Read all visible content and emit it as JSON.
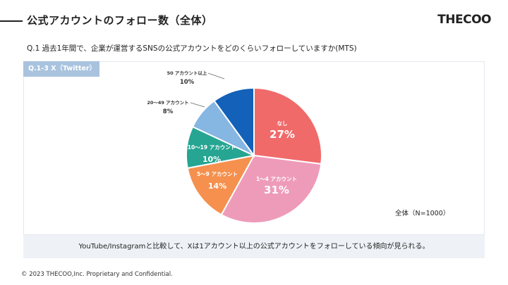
{
  "header": {
    "title": "公式アカウントのフォロー数（全体）",
    "logo": "THECOO"
  },
  "question": "Q.1 過去1年間で、企業が運営するSNSの公式アカウントをどのくらいフォローしていますか(MTS)",
  "tag": "Q.1-3 X（Twitter）",
  "total_label": "全体（N=1000）",
  "conclusion": "YouTube/Instagramと比較して、Xは1アカウント以上の公式アカウントをフォローしている傾向が見られる。",
  "footer": "© 2023 THECOO,Inc. Proprietary and Confidential.",
  "colors": {
    "none": "#f06a6a",
    "1to4": "#ee9bb9",
    "5to9": "#f5904e",
    "10to19": "#25a592",
    "20to49": "#86b6e2",
    "50plus": "#1361b8",
    "tag_bg": "#a9c3de"
  },
  "chart_data": {
    "type": "pie",
    "title": "",
    "slices": [
      {
        "label": "なし",
        "value": 27,
        "display": "27%",
        "color": "#f06a6a"
      },
      {
        "label": "1～4 アカウント",
        "value": 31,
        "display": "31%",
        "color": "#ee9bb9"
      },
      {
        "label": "5～9 アカウント",
        "value": 14,
        "display": "14%",
        "color": "#f5904e"
      },
      {
        "label": "10～19 アカウント",
        "value": 10,
        "display": "10%",
        "color": "#25a592"
      },
      {
        "label": "20～49 アカウント",
        "value": 8,
        "display": "8%",
        "color": "#86b6e2"
      },
      {
        "label": "50 アカウント以上",
        "value": 10,
        "display": "10%",
        "color": "#1361b8"
      }
    ]
  }
}
